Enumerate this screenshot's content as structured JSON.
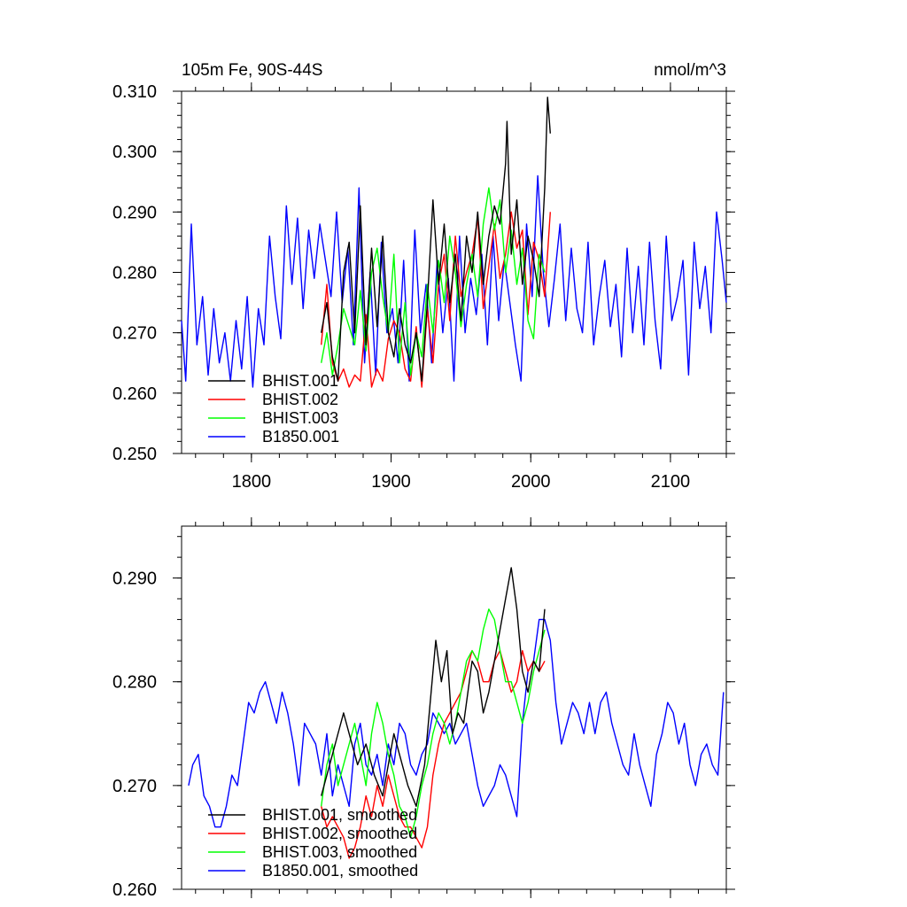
{
  "chart_data": [
    {
      "type": "line",
      "title_left": "105m Fe, 90S-44S",
      "title_right": "nmol/m^3",
      "xlim": [
        1750,
        2140
      ],
      "ylim": [
        0.25,
        0.31
      ],
      "x_ticks": [
        1800,
        1900,
        2000,
        2100
      ],
      "x_tick_labels": [
        "1800",
        "1900",
        "2000",
        "2100"
      ],
      "y_ticks": [
        0.25,
        0.26,
        0.27,
        0.28,
        0.29,
        0.3,
        0.31
      ],
      "y_tick_labels": [
        "0.250",
        "0.260",
        "0.270",
        "0.280",
        "0.290",
        "0.300",
        "0.310"
      ],
      "legend_position": "bottom-left",
      "series": [
        {
          "name": "BHIST.001",
          "color": "#000000",
          "x": [
            1850,
            1854,
            1858,
            1862,
            1866,
            1870,
            1874,
            1878,
            1882,
            1886,
            1890,
            1894,
            1898,
            1902,
            1906,
            1910,
            1914,
            1918,
            1922,
            1926,
            1930,
            1934,
            1938,
            1942,
            1946,
            1950,
            1954,
            1958,
            1962,
            1966,
            1970,
            1974,
            1978,
            1982,
            1983,
            1986,
            1990,
            1994,
            1998,
            2002,
            2006,
            2010,
            2012,
            2014
          ],
          "y": [
            0.27,
            0.275,
            0.266,
            0.262,
            0.28,
            0.285,
            0.27,
            0.291,
            0.268,
            0.284,
            0.271,
            0.286,
            0.27,
            0.266,
            0.274,
            0.268,
            0.265,
            0.27,
            0.262,
            0.275,
            0.292,
            0.278,
            0.288,
            0.275,
            0.283,
            0.272,
            0.286,
            0.28,
            0.29,
            0.278,
            0.286,
            0.291,
            0.288,
            0.298,
            0.305,
            0.283,
            0.292,
            0.278,
            0.286,
            0.282,
            0.276,
            0.294,
            0.309,
            0.303
          ]
        },
        {
          "name": "BHIST.002",
          "color": "#ff0000",
          "x": [
            1850,
            1854,
            1858,
            1862,
            1866,
            1870,
            1874,
            1878,
            1882,
            1886,
            1890,
            1894,
            1898,
            1902,
            1906,
            1910,
            1914,
            1918,
            1922,
            1926,
            1930,
            1934,
            1938,
            1942,
            1946,
            1950,
            1954,
            1958,
            1962,
            1966,
            1970,
            1974,
            1978,
            1982,
            1986,
            1990,
            1994,
            1998,
            2002,
            2006,
            2010,
            2014
          ],
          "y": [
            0.268,
            0.278,
            0.265,
            0.262,
            0.264,
            0.261,
            0.263,
            0.262,
            0.273,
            0.261,
            0.264,
            0.262,
            0.269,
            0.272,
            0.27,
            0.264,
            0.262,
            0.271,
            0.261,
            0.274,
            0.265,
            0.278,
            0.283,
            0.272,
            0.286,
            0.276,
            0.28,
            0.283,
            0.289,
            0.274,
            0.281,
            0.288,
            0.279,
            0.283,
            0.29,
            0.284,
            0.287,
            0.273,
            0.285,
            0.282,
            0.276,
            0.29
          ]
        },
        {
          "name": "BHIST.003",
          "color": "#00ff00",
          "x": [
            1850,
            1854,
            1858,
            1862,
            1866,
            1870,
            1874,
            1878,
            1882,
            1886,
            1890,
            1894,
            1898,
            1902,
            1906,
            1910,
            1914,
            1918,
            1922,
            1926,
            1930,
            1934,
            1938,
            1942,
            1946,
            1950,
            1954,
            1958,
            1962,
            1966,
            1970,
            1974,
            1978,
            1982,
            1986,
            1990,
            1994,
            1998,
            2002,
            2006,
            2010
          ],
          "y": [
            0.265,
            0.27,
            0.263,
            0.268,
            0.274,
            0.271,
            0.268,
            0.277,
            0.267,
            0.28,
            0.284,
            0.276,
            0.27,
            0.283,
            0.265,
            0.275,
            0.263,
            0.27,
            0.266,
            0.278,
            0.27,
            0.282,
            0.275,
            0.286,
            0.28,
            0.271,
            0.278,
            0.283,
            0.276,
            0.288,
            0.294,
            0.287,
            0.292,
            0.28,
            0.287,
            0.278,
            0.284,
            0.272,
            0.269,
            0.283,
            0.28
          ]
        },
        {
          "name": "B1850.001",
          "color": "#0000ff",
          "x": [
            1750,
            1753,
            1757,
            1761,
            1765,
            1769,
            1773,
            1777,
            1781,
            1785,
            1789,
            1793,
            1797,
            1801,
            1805,
            1809,
            1813,
            1817,
            1821,
            1825,
            1829,
            1833,
            1837,
            1841,
            1845,
            1849,
            1853,
            1857,
            1861,
            1865,
            1869,
            1873,
            1877,
            1881,
            1885,
            1889,
            1893,
            1897,
            1901,
            1905,
            1909,
            1913,
            1917,
            1921,
            1925,
            1929,
            1933,
            1937,
            1941,
            1945,
            1949,
            1953,
            1957,
            1961,
            1965,
            1969,
            1973,
            1977,
            1981,
            1985,
            1989,
            1993,
            1997,
            2001,
            2005,
            2009,
            2013,
            2017,
            2021,
            2025,
            2029,
            2033,
            2037,
            2041,
            2045,
            2049,
            2053,
            2057,
            2061,
            2065,
            2069,
            2073,
            2077,
            2081,
            2085,
            2089,
            2093,
            2097,
            2101,
            2105,
            2109,
            2113,
            2117,
            2121,
            2125,
            2129,
            2133,
            2137,
            2140
          ],
          "y": [
            0.272,
            0.262,
            0.288,
            0.268,
            0.276,
            0.263,
            0.274,
            0.265,
            0.27,
            0.262,
            0.272,
            0.264,
            0.276,
            0.261,
            0.274,
            0.268,
            0.286,
            0.276,
            0.269,
            0.291,
            0.278,
            0.289,
            0.274,
            0.287,
            0.279,
            0.288,
            0.282,
            0.276,
            0.29,
            0.275,
            0.284,
            0.268,
            0.294,
            0.265,
            0.28,
            0.263,
            0.285,
            0.27,
            0.274,
            0.265,
            0.282,
            0.262,
            0.287,
            0.27,
            0.278,
            0.265,
            0.282,
            0.27,
            0.279,
            0.262,
            0.286,
            0.27,
            0.279,
            0.273,
            0.283,
            0.268,
            0.286,
            0.272,
            0.282,
            0.275,
            0.268,
            0.262,
            0.288,
            0.276,
            0.296,
            0.28,
            0.271,
            0.279,
            0.288,
            0.272,
            0.284,
            0.274,
            0.27,
            0.285,
            0.268,
            0.276,
            0.282,
            0.271,
            0.278,
            0.266,
            0.284,
            0.27,
            0.281,
            0.268,
            0.285,
            0.272,
            0.264,
            0.286,
            0.272,
            0.276,
            0.282,
            0.263,
            0.285,
            0.274,
            0.281,
            0.27,
            0.29,
            0.282,
            0.275
          ]
        }
      ]
    },
    {
      "type": "line",
      "xlim": [
        1750,
        2140
      ],
      "ylim": [
        0.26,
        0.295
      ],
      "x_ticks": [
        1800,
        1900,
        2000,
        2100
      ],
      "y_ticks": [
        0.26,
        0.27,
        0.28,
        0.29
      ],
      "y_tick_labels": [
        "0.260",
        "0.270",
        "0.280",
        "0.290"
      ],
      "legend_position": "bottom-left",
      "series": [
        {
          "name": "BHIST.001, smoothed",
          "color": "#000000",
          "x": [
            1850,
            1856,
            1862,
            1866,
            1870,
            1876,
            1882,
            1888,
            1894,
            1898,
            1902,
            1906,
            1912,
            1918,
            1924,
            1928,
            1932,
            1936,
            1940,
            1944,
            1948,
            1952,
            1958,
            1962,
            1966,
            1970,
            1974,
            1978,
            1982,
            1986,
            1990,
            1994,
            1998,
            2002,
            2006,
            2010
          ],
          "y": [
            0.269,
            0.272,
            0.275,
            0.277,
            0.275,
            0.272,
            0.274,
            0.271,
            0.269,
            0.272,
            0.275,
            0.273,
            0.27,
            0.268,
            0.272,
            0.278,
            0.284,
            0.28,
            0.283,
            0.275,
            0.277,
            0.276,
            0.282,
            0.281,
            0.277,
            0.279,
            0.282,
            0.285,
            0.288,
            0.291,
            0.287,
            0.281,
            0.279,
            0.282,
            0.281,
            0.287
          ]
        },
        {
          "name": "BHIST.002, smoothed",
          "color": "#ff0000",
          "x": [
            1850,
            1854,
            1858,
            1862,
            1866,
            1870,
            1874,
            1878,
            1882,
            1886,
            1890,
            1894,
            1898,
            1902,
            1906,
            1910,
            1914,
            1918,
            1922,
            1926,
            1930,
            1934,
            1938,
            1942,
            1946,
            1950,
            1954,
            1958,
            1962,
            1966,
            1970,
            1974,
            1978,
            1982,
            1986,
            1990,
            1994,
            1998,
            2002,
            2006,
            2010
          ],
          "y": [
            0.268,
            0.266,
            0.267,
            0.266,
            0.265,
            0.263,
            0.264,
            0.266,
            0.269,
            0.267,
            0.27,
            0.268,
            0.271,
            0.269,
            0.267,
            0.266,
            0.266,
            0.265,
            0.264,
            0.266,
            0.271,
            0.274,
            0.276,
            0.277,
            0.278,
            0.279,
            0.281,
            0.283,
            0.282,
            0.28,
            0.28,
            0.282,
            0.283,
            0.281,
            0.279,
            0.28,
            0.283,
            0.281,
            0.282,
            0.281,
            0.282
          ]
        },
        {
          "name": "BHIST.003, smoothed",
          "color": "#00ff00",
          "x": [
            1850,
            1854,
            1858,
            1862,
            1866,
            1870,
            1874,
            1878,
            1882,
            1886,
            1890,
            1894,
            1898,
            1902,
            1906,
            1910,
            1914,
            1918,
            1922,
            1926,
            1930,
            1934,
            1938,
            1942,
            1946,
            1950,
            1954,
            1958,
            1962,
            1966,
            1970,
            1974,
            1978,
            1982,
            1986,
            1990,
            1994,
            1998,
            2002,
            2006,
            2010
          ],
          "y": [
            0.268,
            0.272,
            0.274,
            0.27,
            0.272,
            0.274,
            0.276,
            0.273,
            0.27,
            0.275,
            0.278,
            0.276,
            0.273,
            0.271,
            0.268,
            0.267,
            0.265,
            0.267,
            0.27,
            0.272,
            0.275,
            0.277,
            0.276,
            0.274,
            0.276,
            0.279,
            0.282,
            0.283,
            0.282,
            0.285,
            0.287,
            0.286,
            0.283,
            0.28,
            0.28,
            0.278,
            0.276,
            0.278,
            0.281,
            0.283,
            0.285
          ]
        },
        {
          "name": "B1850.001, smoothed",
          "color": "#0000ff",
          "x": [
            1755,
            1758,
            1762,
            1766,
            1770,
            1774,
            1778,
            1782,
            1786,
            1790,
            1794,
            1798,
            1802,
            1806,
            1810,
            1814,
            1818,
            1822,
            1826,
            1830,
            1834,
            1838,
            1842,
            1846,
            1850,
            1854,
            1858,
            1862,
            1866,
            1870,
            1874,
            1878,
            1882,
            1886,
            1890,
            1894,
            1898,
            1902,
            1906,
            1910,
            1914,
            1918,
            1922,
            1926,
            1930,
            1934,
            1938,
            1942,
            1946,
            1950,
            1954,
            1958,
            1962,
            1966,
            1970,
            1974,
            1978,
            1982,
            1986,
            1990,
            1994,
            1998,
            2002,
            2006,
            2010,
            2014,
            2018,
            2022,
            2026,
            2030,
            2034,
            2038,
            2042,
            2046,
            2050,
            2054,
            2058,
            2062,
            2066,
            2070,
            2074,
            2078,
            2082,
            2086,
            2090,
            2094,
            2098,
            2102,
            2106,
            2110,
            2114,
            2118,
            2122,
            2126,
            2130,
            2134,
            2138
          ],
          "y": [
            0.27,
            0.272,
            0.273,
            0.269,
            0.268,
            0.266,
            0.266,
            0.268,
            0.271,
            0.27,
            0.274,
            0.278,
            0.277,
            0.279,
            0.28,
            0.278,
            0.276,
            0.279,
            0.277,
            0.274,
            0.27,
            0.276,
            0.275,
            0.274,
            0.271,
            0.275,
            0.269,
            0.272,
            0.27,
            0.268,
            0.274,
            0.276,
            0.272,
            0.271,
            0.273,
            0.27,
            0.274,
            0.272,
            0.276,
            0.275,
            0.272,
            0.271,
            0.273,
            0.274,
            0.277,
            0.276,
            0.275,
            0.276,
            0.274,
            0.275,
            0.276,
            0.273,
            0.27,
            0.268,
            0.269,
            0.27,
            0.272,
            0.271,
            0.269,
            0.267,
            0.276,
            0.281,
            0.282,
            0.286,
            0.286,
            0.284,
            0.278,
            0.274,
            0.276,
            0.278,
            0.277,
            0.275,
            0.278,
            0.275,
            0.278,
            0.279,
            0.276,
            0.274,
            0.272,
            0.271,
            0.275,
            0.272,
            0.27,
            0.268,
            0.273,
            0.275,
            0.278,
            0.277,
            0.274,
            0.276,
            0.272,
            0.27,
            0.273,
            0.274,
            0.272,
            0.271,
            0.279
          ]
        }
      ]
    }
  ]
}
